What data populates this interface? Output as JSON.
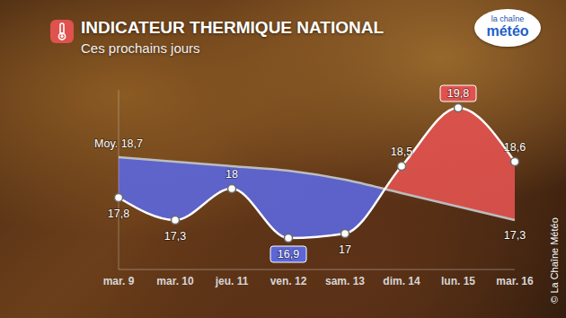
{
  "chart_data": {
    "type": "line",
    "title": "INDICATEUR THERMIQUE NATIONAL",
    "subtitle": "Ces prochains jours",
    "annotations": [
      "la chaîne",
      "météo",
      "© La Chaîne Météo"
    ],
    "categories": [
      "mar. 9",
      "mar. 10",
      "jeu. 11",
      "ven. 12",
      "sam. 13",
      "dim. 14",
      "lun. 15",
      "mar. 16"
    ],
    "series": [
      {
        "color": "#ffffff",
        "values": [
          17.8,
          17.3,
          18,
          16.9,
          17,
          18.5,
          19.8,
          18.6
        ],
        "value_labels": [
          "17,8",
          "17,3",
          "18",
          "16,9",
          "17",
          "18,5",
          "19,8",
          "18,6"
        ]
      },
      {
        "color": "#bdbdbd",
        "values": [
          18.7,
          18.6,
          18.5,
          18.4,
          18.2,
          17.9,
          17.6,
          17.3
        ],
        "value_labels": [
          "Moy. 18,7",
          null,
          null,
          null,
          null,
          null,
          null,
          "17,3"
        ]
      }
    ],
    "ylim": [
      16.2,
      20.2
    ],
    "grid": false,
    "data_labels": true,
    "tick_labels": "x"
  }
}
